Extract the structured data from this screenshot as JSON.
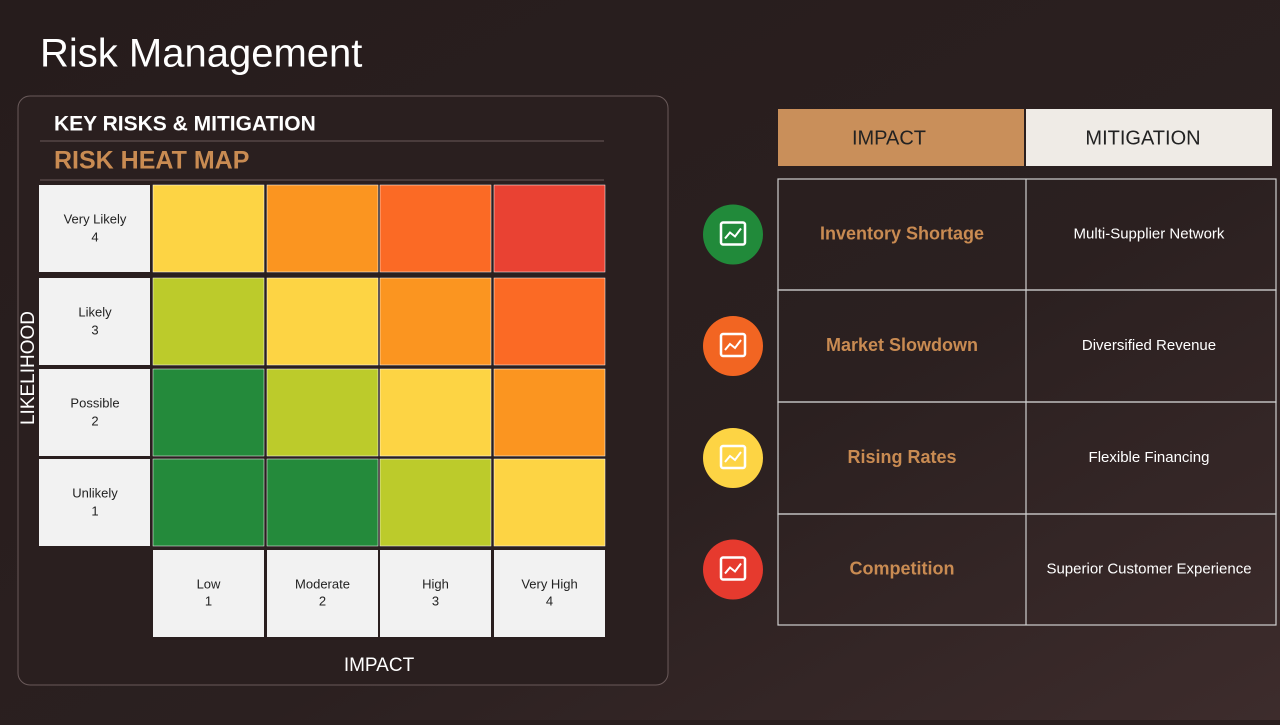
{
  "title": "Risk Management",
  "panel": {
    "heading": "KEY RISKS & MITIGATION",
    "subheading": "RISK HEAT MAP",
    "y_axis_label": "LIKELIHOOD",
    "x_axis_label": "IMPACT",
    "rows": [
      {
        "label": "Very Likely",
        "score": 4
      },
      {
        "label": "Likely",
        "score": 3
      },
      {
        "label": "Possible",
        "score": 2
      },
      {
        "label": "Unlikely",
        "score": 1
      }
    ],
    "columns": [
      {
        "label": "Low",
        "score": 1
      },
      {
        "label": "Moderate",
        "score": 2
      },
      {
        "label": "High",
        "score": 3
      },
      {
        "label": "Very High",
        "score": 4
      }
    ],
    "cell_colors": [
      [
        "#fdd444",
        "#fb9520",
        "#fb6a25",
        "#e94233"
      ],
      [
        "#bccb2b",
        "#fdd444",
        "#fb9520",
        "#fb6a25"
      ],
      [
        "#248a3b",
        "#bccb2b",
        "#fdd444",
        "#fb9520"
      ],
      [
        "#248a3b",
        "#248a3b",
        "#bccb2b",
        "#fdd444"
      ]
    ]
  },
  "table": {
    "headers": [
      "IMPACT",
      "MITIGATION"
    ],
    "rows": [
      [
        "Inventory Shortage",
        "Multi-Supplier Network"
      ],
      [
        "Market Slowdown",
        "Diversified Revenue"
      ],
      [
        "Rising Rates",
        "Flexible Financing"
      ],
      [
        "Competition",
        "Superior Customer Experience"
      ]
    ],
    "icon_colors": [
      "#218a3a",
      "#f26522",
      "#fdd444",
      "#e63a2e"
    ]
  }
}
